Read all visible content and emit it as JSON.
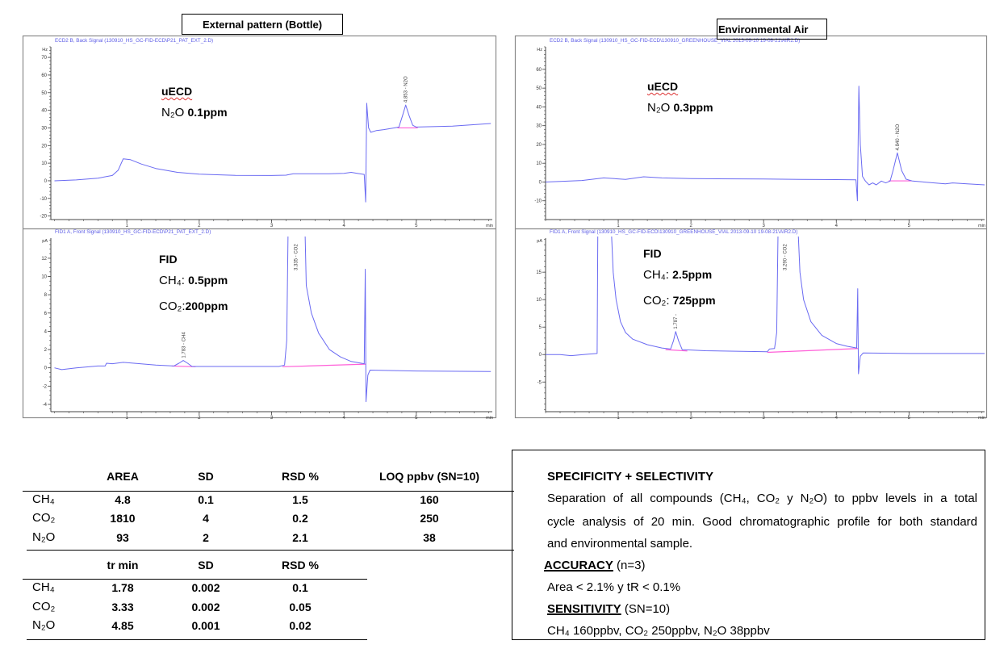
{
  "headers": {
    "left": "External pattern (Bottle)",
    "right": "Environmental Air"
  },
  "annotations": {
    "tl": {
      "detector": "uECD",
      "formula": "N₂O",
      "value": "0.1ppm"
    },
    "tr": {
      "detector": "uECD",
      "formula": "N₂O",
      "value": "0.3ppm"
    },
    "bl": {
      "detector": "FID",
      "ch4_formula": "CH₄:",
      "ch4_value": "0.5ppm",
      "co2_formula": "CO₂:",
      "co2_value": "200ppm"
    },
    "br": {
      "detector": "FID",
      "ch4_formula": "CH₄:",
      "ch4_value": "2.5ppm",
      "co2_formula": "CO₂:",
      "co2_value": "725ppm"
    }
  },
  "colors": {
    "trace": "#6a6af2",
    "baseline": "#ff5fd8",
    "signal_title": "#5c5ce6",
    "frame": "#8a8a8a"
  },
  "chart_data": [
    {
      "type": "line",
      "title": "ECD2 B, Back Signal (130910_HS_GC-FID-ECD\\P21_PAT_EXT_2.D)",
      "ylabel": "Hz",
      "xlabel": "min",
      "xlim": [
        -0.05,
        6.05
      ],
      "ylim": [
        -22,
        76
      ],
      "xticks": [
        1,
        2,
        3,
        4,
        5
      ],
      "yticks": [
        -20,
        -10,
        0,
        10,
        20,
        30,
        40,
        50,
        60,
        70
      ],
      "x_minor": 0.2,
      "y_minor": 2,
      "series": [
        {
          "values": [
            [
              0,
              0
            ],
            [
              0.3,
              0.5
            ],
            [
              0.6,
              1.5
            ],
            [
              0.8,
              3
            ],
            [
              0.88,
              6
            ],
            [
              0.95,
              12.5
            ],
            [
              1.05,
              12
            ],
            [
              1.2,
              9.5
            ],
            [
              1.4,
              7
            ],
            [
              1.7,
              4.8
            ],
            [
              2,
              3.8
            ],
            [
              2.5,
              3.1
            ],
            [
              3,
              3
            ],
            [
              3.2,
              3.2
            ],
            [
              3.3,
              4
            ],
            [
              3.8,
              4
            ],
            [
              4,
              4.2
            ],
            [
              4.1,
              4.8
            ],
            [
              4.2,
              4.1
            ],
            [
              4.28,
              3.6
            ],
            [
              4.3,
              -12
            ],
            [
              4.315,
              44
            ],
            [
              4.34,
              30
            ],
            [
              4.37,
              27.5
            ],
            [
              4.45,
              28.5
            ],
            [
              4.55,
              29
            ],
            [
              4.7,
              30
            ],
            [
              4.76,
              30.5
            ],
            [
              4.81,
              37
            ],
            [
              4.853,
              43
            ],
            [
              4.9,
              37
            ],
            [
              4.95,
              31.5
            ],
            [
              5.0,
              30.5
            ],
            [
              5.5,
              31
            ],
            [
              6.03,
              32.5
            ]
          ]
        }
      ],
      "baselines": [
        [
          [
            4.74,
            30
          ],
          [
            5.02,
            30
          ]
        ]
      ],
      "peaks": [
        {
          "label": "4.853 - N2O",
          "rt": 4.853,
          "apex": 43
        }
      ]
    },
    {
      "type": "line",
      "title": "FID1 A, Front Signal (130910_HS_GC-FID-ECD\\P21_PAT_EXT_2.D)",
      "ylabel": "pA",
      "xlabel": "min",
      "xlim": [
        -0.05,
        6.05
      ],
      "ylim": [
        -4.8,
        14.2
      ],
      "xticks": [
        1,
        2,
        3,
        4,
        5
      ],
      "yticks": [
        -4,
        -2,
        0,
        2,
        4,
        6,
        8,
        10,
        12
      ],
      "x_minor": 0.2,
      "y_minor": 0.5,
      "series": [
        {
          "values": [
            [
              0,
              0
            ],
            [
              0.1,
              -0.2
            ],
            [
              0.3,
              0
            ],
            [
              0.6,
              0.2
            ],
            [
              0.7,
              0.2
            ],
            [
              0.72,
              0.5
            ],
            [
              0.8,
              0.45
            ],
            [
              0.95,
              0.6
            ],
            [
              1.1,
              0.5
            ],
            [
              1.4,
              0.3
            ],
            [
              1.65,
              0.2
            ],
            [
              1.72,
              0.5
            ],
            [
              1.78,
              0.8
            ],
            [
              1.84,
              0.5
            ],
            [
              1.9,
              0.15
            ],
            [
              2.5,
              0.15
            ],
            [
              3.1,
              0.15
            ],
            [
              3.18,
              0.3
            ],
            [
              3.21,
              3
            ],
            [
              3.23,
              16
            ],
            [
              3.46,
              16
            ],
            [
              3.48,
              9
            ],
            [
              3.55,
              6
            ],
            [
              3.65,
              3.8
            ],
            [
              3.8,
              2
            ],
            [
              3.95,
              1.2
            ],
            [
              4.1,
              0.7
            ],
            [
              4.28,
              0.45
            ],
            [
              4.295,
              10.8
            ],
            [
              4.305,
              -3.7
            ],
            [
              4.33,
              -0.8
            ],
            [
              4.36,
              -0.25
            ],
            [
              5,
              -0.35
            ],
            [
              6.03,
              -0.4
            ]
          ]
        }
      ],
      "baselines": [
        [
          [
            1.62,
            0.2
          ],
          [
            1.95,
            0.12
          ]
        ],
        [
          [
            3.15,
            0.12
          ],
          [
            4.3,
            0.4
          ]
        ]
      ],
      "peaks": [
        {
          "label": "1.783 - CH4",
          "rt": 1.783,
          "apex": 0.8
        },
        {
          "label": "3.335 - CO2",
          "rt": 3.335,
          "apex": null
        }
      ]
    },
    {
      "type": "line",
      "title": "ECD2 B, Back Signal (130910_HS_GC-FID-ECD\\130910_GREENHOUSE_VIAL 2013-09-10 19-08-21\\AIR2.D)",
      "ylabel": "Hz",
      "xlabel": "min",
      "xlim": [
        0,
        6.04
      ],
      "ylim": [
        -20,
        72
      ],
      "xticks": [
        1,
        2,
        3,
        4,
        5
      ],
      "yticks": [
        -10,
        0,
        10,
        20,
        30,
        40,
        50,
        60
      ],
      "x_minor": 0.2,
      "y_minor": 2,
      "series": [
        {
          "values": [
            [
              0,
              0
            ],
            [
              0.5,
              0.8
            ],
            [
              0.8,
              2.2
            ],
            [
              0.95,
              1.8
            ],
            [
              1.1,
              1.4
            ],
            [
              1.35,
              2.8
            ],
            [
              1.6,
              2.2
            ],
            [
              2,
              1.8
            ],
            [
              3,
              1.6
            ],
            [
              3.5,
              1.4
            ],
            [
              4,
              1.3
            ],
            [
              4.27,
              1.2
            ],
            [
              4.29,
              -10
            ],
            [
              4.31,
              51
            ],
            [
              4.33,
              20
            ],
            [
              4.36,
              3
            ],
            [
              4.4,
              0.5
            ],
            [
              4.45,
              -1.5
            ],
            [
              4.5,
              -0.5
            ],
            [
              4.55,
              -1.5
            ],
            [
              4.62,
              0.5
            ],
            [
              4.68,
              -0.5
            ],
            [
              4.74,
              0.5
            ],
            [
              4.78,
              6
            ],
            [
              4.84,
              15.5
            ],
            [
              4.9,
              6
            ],
            [
              4.96,
              1.5
            ],
            [
              5.05,
              0.5
            ],
            [
              5.3,
              -0.3
            ],
            [
              5.5,
              -1
            ],
            [
              5.6,
              -0.5
            ],
            [
              5.8,
              -1
            ],
            [
              6.04,
              -1.5
            ]
          ]
        }
      ],
      "baselines": [
        [
          [
            4.72,
            0.6
          ],
          [
            5.04,
            0.6
          ]
        ]
      ],
      "peaks": [
        {
          "label": "4.840 - N2O",
          "rt": 4.84,
          "apex": 15.5
        }
      ]
    },
    {
      "type": "line",
      "title": "FID1 A, Front Signal (130910_HS_GC-FID-ECD\\130910_GREENHOUSE_VIAL 2013-09-10 19-08-21\\AIR2.D)",
      "ylabel": "pA",
      "xlabel": "min",
      "xlim": [
        0,
        6.04
      ],
      "ylim": [
        -10.4,
        21.2
      ],
      "xticks": [
        1,
        2,
        3,
        4,
        5
      ],
      "yticks": [
        -5,
        0,
        5,
        10,
        15
      ],
      "x_minor": 0.2,
      "y_minor": 1,
      "series": [
        {
          "values": [
            [
              0,
              0
            ],
            [
              0.2,
              0
            ],
            [
              0.35,
              -0.2
            ],
            [
              0.6,
              0.1
            ],
            [
              0.71,
              0.2
            ],
            [
              0.72,
              24
            ],
            [
              0.9,
              24
            ],
            [
              0.93,
              15
            ],
            [
              0.97,
              10
            ],
            [
              1.03,
              6
            ],
            [
              1.1,
              4
            ],
            [
              1.2,
              2.8
            ],
            [
              1.4,
              1.8
            ],
            [
              1.6,
              1.2
            ],
            [
              1.72,
              1
            ],
            [
              1.76,
              2.5
            ],
            [
              1.79,
              4.2
            ],
            [
              1.83,
              2.5
            ],
            [
              1.88,
              0.9
            ],
            [
              2.2,
              0.7
            ],
            [
              2.7,
              0.6
            ],
            [
              3.05,
              0.5
            ],
            [
              3.08,
              1
            ],
            [
              3.15,
              1.1
            ],
            [
              3.18,
              4
            ],
            [
              3.2,
              24
            ],
            [
              3.47,
              24
            ],
            [
              3.5,
              15
            ],
            [
              3.55,
              10
            ],
            [
              3.65,
              6
            ],
            [
              3.8,
              3.5
            ],
            [
              4,
              2
            ],
            [
              4.15,
              1.5
            ],
            [
              4.28,
              1.2
            ],
            [
              4.295,
              12
            ],
            [
              4.305,
              -3.5
            ],
            [
              4.33,
              -0.3
            ],
            [
              4.37,
              0.3
            ],
            [
              5,
              0.2
            ],
            [
              6.04,
              0.2
            ]
          ]
        }
      ],
      "baselines": [
        [
          [
            1.65,
            0.9
          ],
          [
            1.95,
            0.65
          ]
        ],
        [
          [
            3.05,
            0.4
          ],
          [
            4.3,
            1.1
          ]
        ]
      ],
      "peaks": [
        {
          "label": "1.787 -",
          "rt": 1.787,
          "apex": 4.2
        },
        {
          "label": "3.290 - CO2",
          "rt": 3.29,
          "apex": null
        }
      ]
    }
  ],
  "table_area": {
    "columns": [
      "AREA",
      "SD",
      "RSD %",
      "LOQ ppbv (SN=10)"
    ],
    "rows": [
      {
        "compound": "CH₄",
        "values": [
          "4.8",
          "0.1",
          "1.5",
          "160"
        ]
      },
      {
        "compound": "CO₂",
        "values": [
          "1810",
          "4",
          "0.2",
          "250"
        ]
      },
      {
        "compound": "N₂O",
        "values": [
          "93",
          "2",
          "2.1",
          "38"
        ]
      }
    ]
  },
  "table_rt": {
    "columns": [
      "tr min",
      "SD",
      "RSD %"
    ],
    "rows": [
      {
        "compound": "CH₄",
        "values": [
          "1.78",
          "0.002",
          "0.1"
        ]
      },
      {
        "compound": "CO₂",
        "values": [
          "3.33",
          "0.002",
          "0.05"
        ]
      },
      {
        "compound": "N₂O",
        "values": [
          "4.85",
          "0.001",
          "0.02"
        ]
      }
    ]
  },
  "summary": {
    "heading": "SPECIFICITY + SELECTIVITY",
    "para_line1": "Separation of all compounds (CH₄, CO₂ y N₂O) to ppbv levels in a total",
    "para_line2": "cycle analysis  of 20 min. Good chromatographic profile for both standard",
    "para_line3": "and environmental sample.",
    "accuracy_label": "ACCURACY",
    "accuracy_cond": " (n=3)",
    "accuracy_text": "Area < 2.1% y tR < 0.1%",
    "sensitivity_label": "SENSITIVITY",
    "sensitivity_cond": " (SN=10)",
    "sensitivity_text": "CH₄ 160ppbv, CO₂ 250ppbv, N₂O 38ppbv"
  }
}
